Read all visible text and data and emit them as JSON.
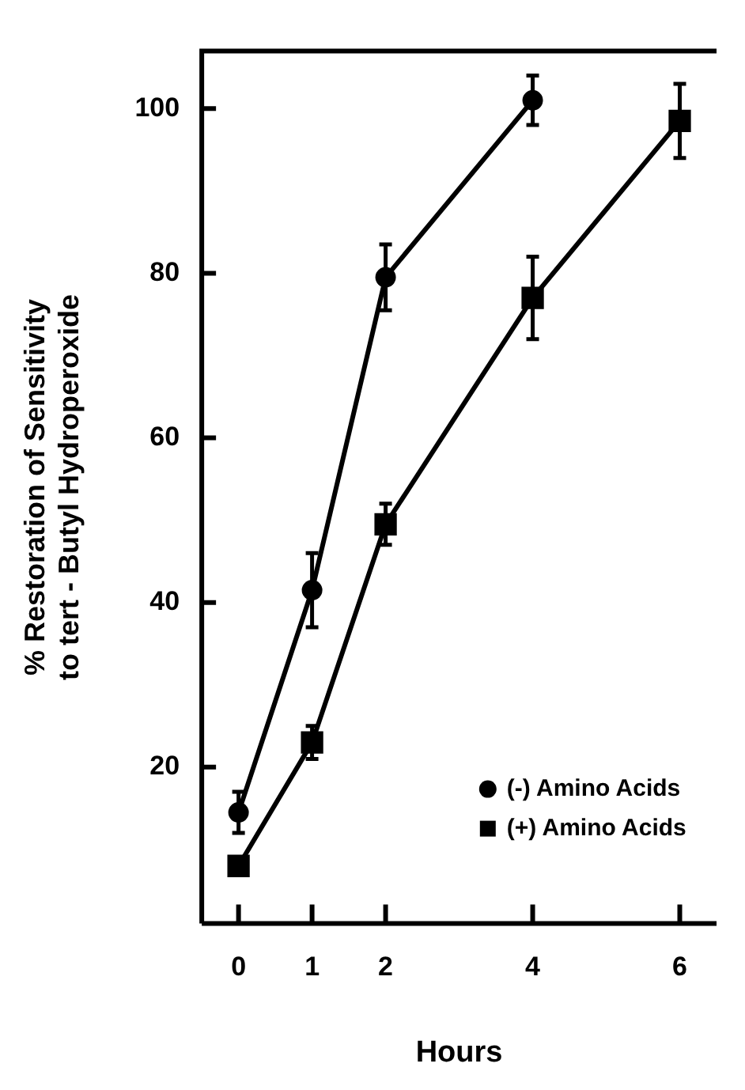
{
  "chart_data": {
    "type": "line",
    "xlabel": "Hours",
    "ylabel": "% Restoration of Sensitivity\nto tert - Butyl Hydroperoxide",
    "xlim": [
      -0.5,
      6.5
    ],
    "xticks": [
      0,
      1,
      2,
      4,
      6
    ],
    "ylim": [
      1,
      107
    ],
    "yticks": [
      20,
      40,
      60,
      80,
      100
    ],
    "grid": false,
    "legend": "bottom right",
    "line_style": "solid",
    "series": [
      {
        "name": "(-) Amino Acids",
        "color": "#000000",
        "marker": "circle",
        "x": [
          0,
          1,
          2,
          4
        ],
        "values": [
          14.5,
          41.5,
          79.5,
          101
        ],
        "errors": [
          2.5,
          4.5,
          4,
          3
        ]
      },
      {
        "name": "(+) Amino Acids",
        "color": "#000000",
        "marker": "square",
        "x": [
          0,
          1,
          2,
          4,
          6
        ],
        "values": [
          8,
          23,
          49.5,
          77,
          98.5
        ],
        "errors": [
          null,
          2,
          2.5,
          5,
          4.5
        ]
      }
    ]
  }
}
